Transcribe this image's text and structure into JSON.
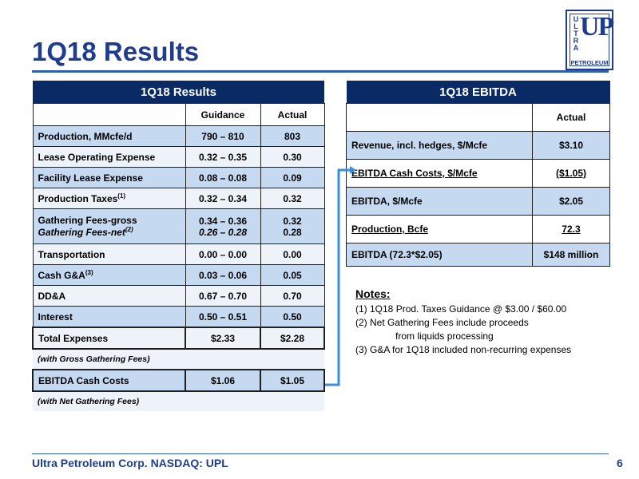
{
  "page": {
    "title": "1Q18 Results",
    "logo": {
      "small": "ULTRA",
      "big": "UP",
      "bottom": "PETROLEUM"
    },
    "footer": "Ultra Petroleum Corp. NASDAQ: UPL",
    "page_number": "6"
  },
  "results_table": {
    "header": "1Q18 Results",
    "col_guidance": "Guidance",
    "col_actual": "Actual",
    "rows": [
      {
        "label": "Production, MMcfe/d",
        "guidance": "790 – 810",
        "actual": "803"
      },
      {
        "label": "Lease Operating Expense",
        "guidance": "0.32 – 0.35",
        "actual": "0.30"
      },
      {
        "label": "Facility Lease Expense",
        "guidance": "0.08 – 0.08",
        "actual": "0.09"
      },
      {
        "label": "Production Taxes",
        "sup": "(1)",
        "guidance": "0.32 – 0.34",
        "actual": "0.32"
      },
      {
        "label": "Gathering Fees-gross",
        "label2": "Gathering Fees-net",
        "sup2": "(2)",
        "guidance": "0.34 – 0.36",
        "guidance2": "0.26 – 0.28",
        "actual": "0.32",
        "actual2": "0.28"
      },
      {
        "label": "Transportation",
        "guidance": "0.00 – 0.00",
        "actual": "0.00"
      },
      {
        "label": "Cash G&A",
        "sup": "(3)",
        "guidance": "0.03 – 0.06",
        "actual": "0.05"
      },
      {
        "label": "DD&A",
        "guidance": "0.67 – 0.70",
        "actual": "0.70"
      },
      {
        "label": "Interest",
        "guidance": "0.50 – 0.51",
        "actual": "0.50"
      },
      {
        "label": "Total Expenses",
        "guidance": "$2.33",
        "actual": "$2.28"
      }
    ],
    "note_gross": "(with Gross Gathering Fees)",
    "ebitda_row": {
      "label": "EBITDA Cash Costs",
      "guidance": "$1.06",
      "actual": "$1.05"
    },
    "note_net": "(with Net Gathering Fees)"
  },
  "ebitda_table": {
    "header": "1Q18 EBITDA",
    "col_actual": "Actual",
    "rows": [
      {
        "label": "Revenue, incl. hedges, $/Mcfe",
        "actual": "$3.10"
      },
      {
        "label": "EBITDA Cash Costs, $/Mcfe",
        "actual": "($1.05)"
      },
      {
        "label": "EBITDA, $/Mcfe",
        "actual": "$2.05"
      },
      {
        "label": "Production, Bcfe",
        "actual": "72.3"
      },
      {
        "label": "EBITDA (72.3*$2.05)",
        "actual": "$148 million"
      }
    ]
  },
  "notes": {
    "title": "Notes:",
    "items": [
      "(1)   1Q18 Prod. Taxes Guidance @ $3.00 / $60.00",
      "(2)   Net Gathering Fees include proceeds",
      "from liquids processing",
      "(3)   G&A for 1Q18 included non-recurring expenses"
    ]
  },
  "colors": {
    "title": "#1f3d8a",
    "header_bg": "#0a2a66",
    "row_blue": "#c5d9f1",
    "connector": "#3a8fd8"
  }
}
